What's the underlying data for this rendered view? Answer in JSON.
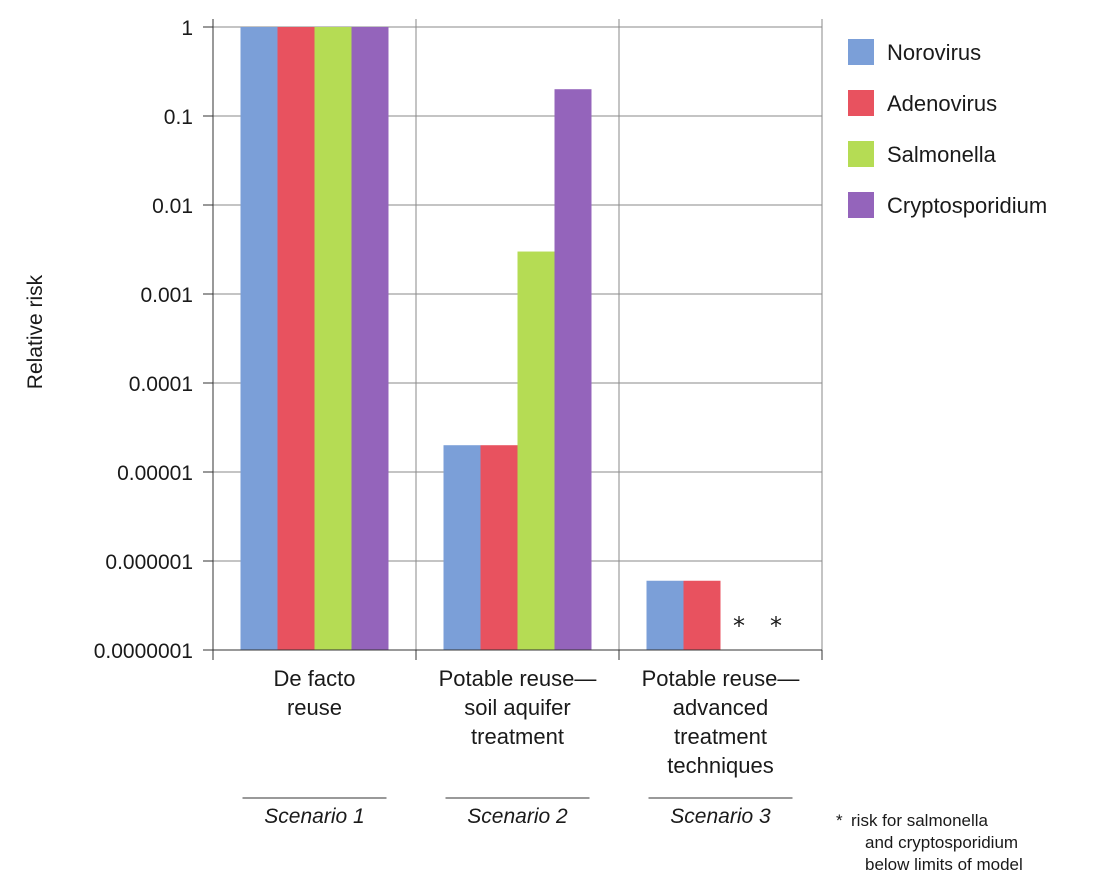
{
  "chart_data": {
    "type": "bar",
    "ylabel": "Relative risk",
    "yscale": "log",
    "ylim": [
      1e-07,
      1
    ],
    "yticks": [
      "1",
      "0.1",
      "0.01",
      "0.001",
      "0.0001",
      "0.00001",
      "0.000001",
      "0.0000001"
    ],
    "categories": [
      [
        "De facto",
        "reuse"
      ],
      [
        "Potable reuse—",
        "soil aquifer",
        "treatment"
      ],
      [
        "Potable reuse—",
        "advanced",
        "treatment",
        "techniques"
      ]
    ],
    "scenarios": [
      "Scenario 1",
      "Scenario 2",
      "Scenario 3"
    ],
    "series": [
      {
        "name": "Norovirus",
        "color": "#7b9fd8",
        "values": [
          1,
          2e-05,
          6e-07
        ]
      },
      {
        "name": "Adenovirus",
        "color": "#e8525f",
        "values": [
          1,
          2e-05,
          6e-07
        ]
      },
      {
        "name": "Salmonella",
        "color": "#b5dc54",
        "values": [
          1,
          0.003,
          null
        ]
      },
      {
        "name": "Cryptosporidium",
        "color": "#9464bb",
        "values": [
          1,
          0.2,
          null
        ]
      }
    ],
    "below_limit_marker": "*",
    "legend_position": "top-right",
    "grid": true,
    "footnote": {
      "marker": "*",
      "lines": [
        "risk for salmonella",
        "and cryptosporidium",
        "below limits of model"
      ]
    }
  }
}
